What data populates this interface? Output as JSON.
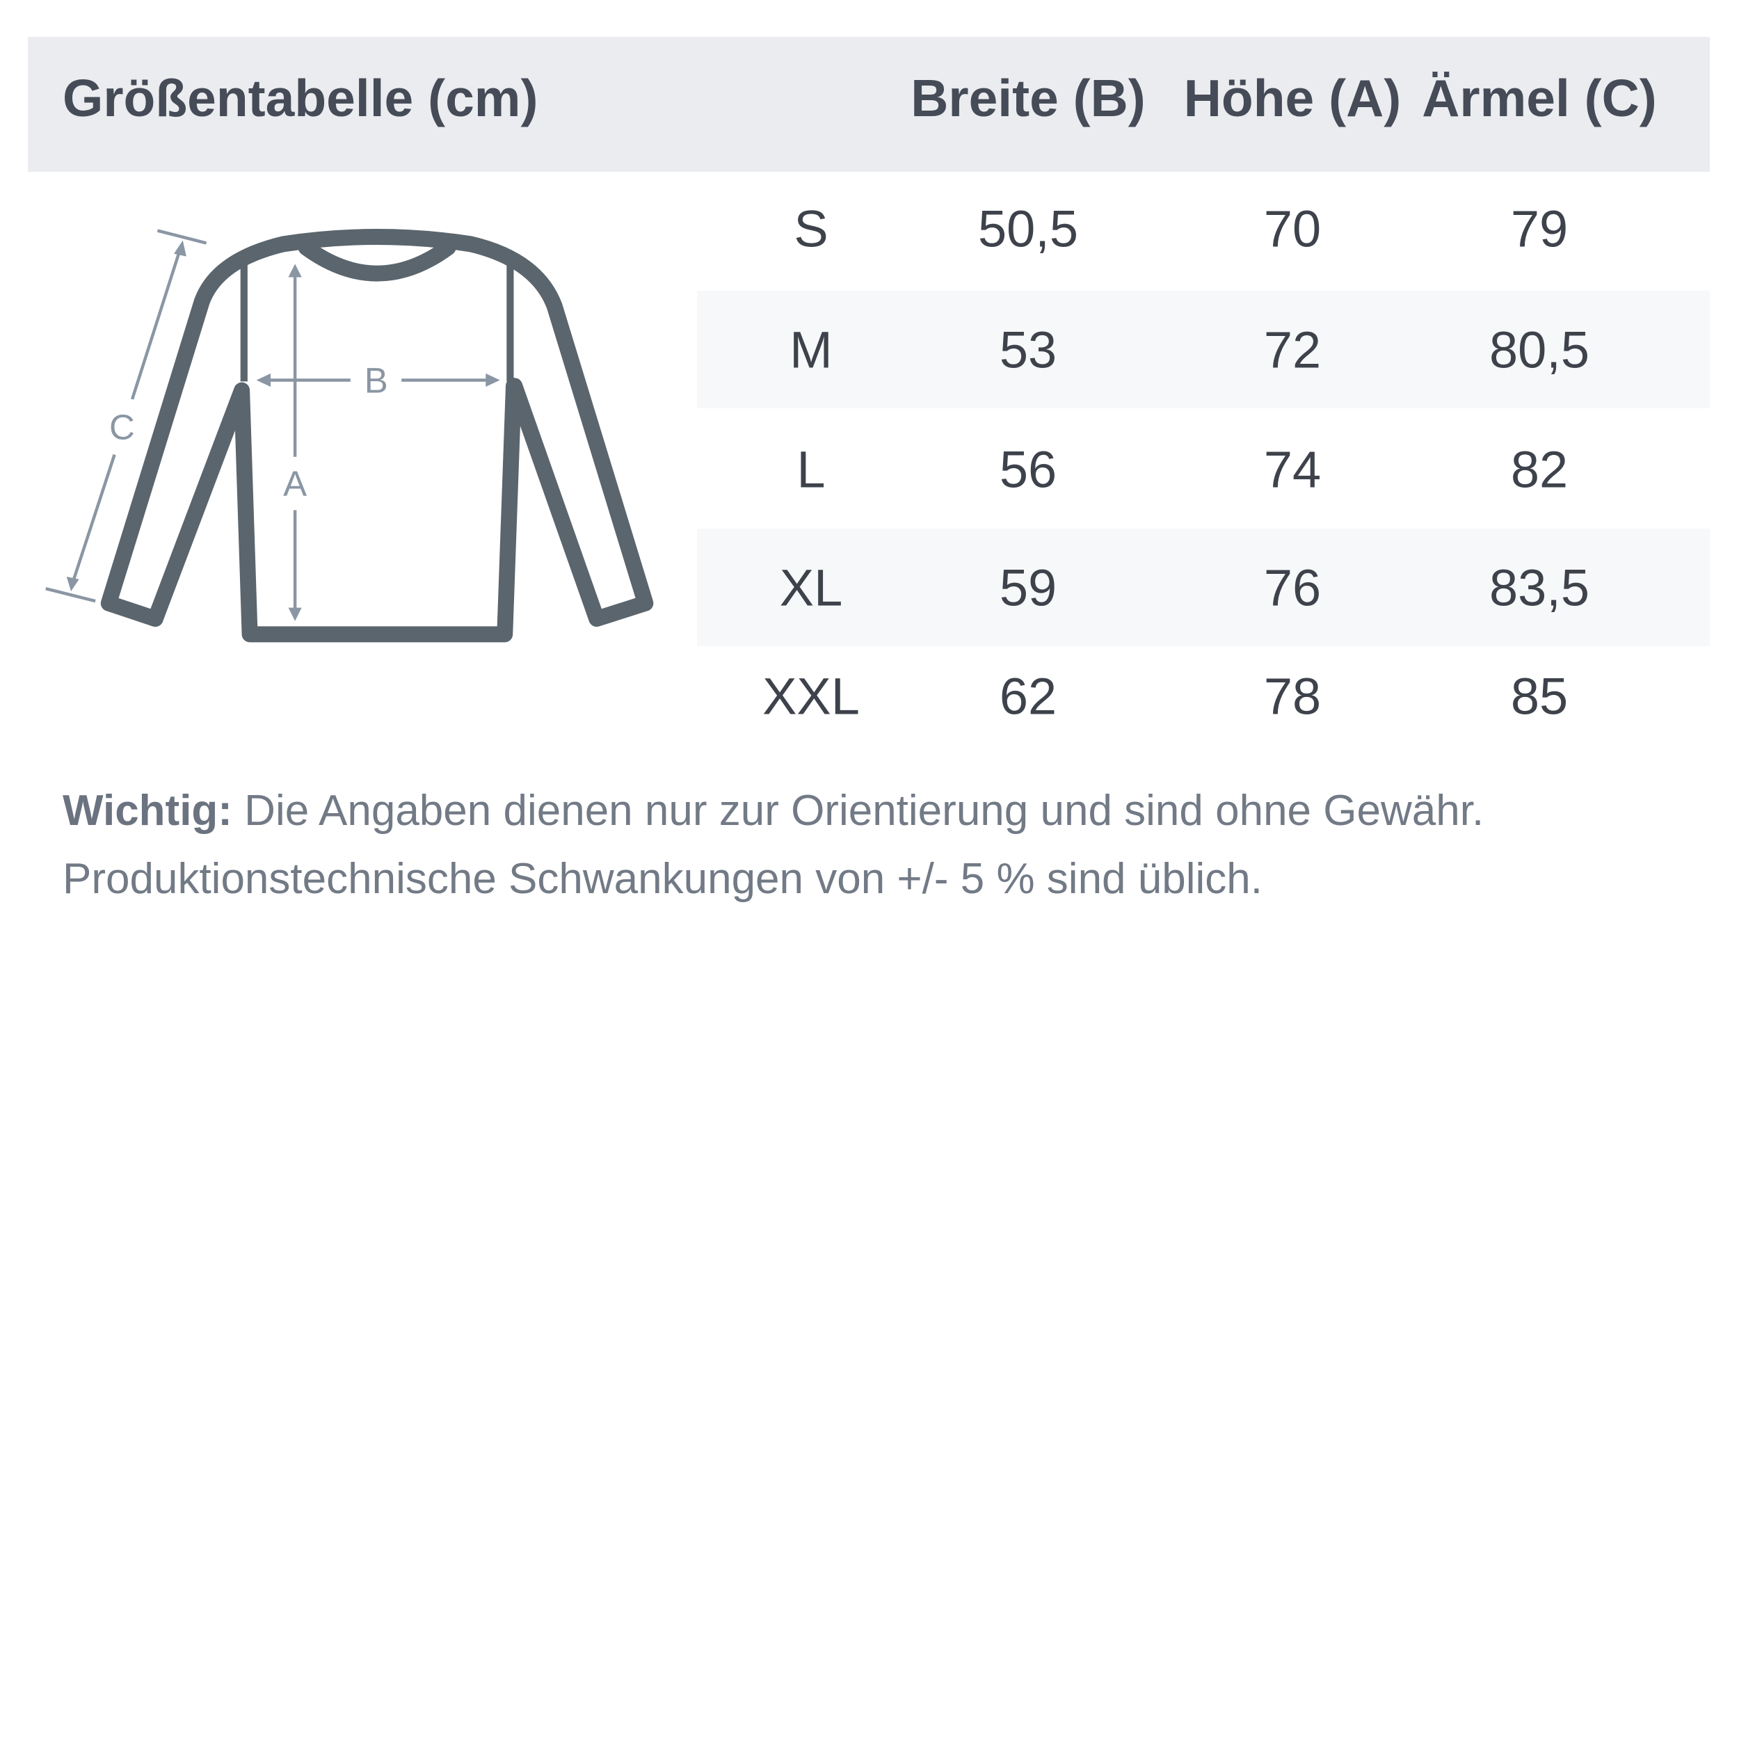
{
  "header": {
    "title": "Größentabelle (cm)",
    "columns": [
      "Breite (B)",
      "Höhe (A)",
      "Ärmel (C)"
    ]
  },
  "diagram": {
    "icon": "long-sleeve-shirt-icon",
    "labels": {
      "a": "A",
      "b": "B",
      "c": "C"
    }
  },
  "table": {
    "rows": [
      {
        "size": "S",
        "breite": "50,5",
        "hoehe": "70",
        "aermel": "79"
      },
      {
        "size": "M",
        "breite": "53",
        "hoehe": "72",
        "aermel": "80,5"
      },
      {
        "size": "L",
        "breite": "56",
        "hoehe": "74",
        "aermel": "82"
      },
      {
        "size": "XL",
        "breite": "59",
        "hoehe": "76",
        "aermel": "83,5"
      },
      {
        "size": "XXL",
        "breite": "62",
        "hoehe": "78",
        "aermel": "85"
      }
    ]
  },
  "note": {
    "label": "Wichtig:",
    "line1": " Die Angaben dienen nur zur Orientierung und sind ohne Gewähr.",
    "line2": "Produktionstechnische Schwankungen von +/- 5 % sind üblich."
  },
  "colors": {
    "header_bg": "#ebecef",
    "outline": "#5a656d",
    "measure": "#8a96a3",
    "stripe": "#f7f8f9"
  }
}
